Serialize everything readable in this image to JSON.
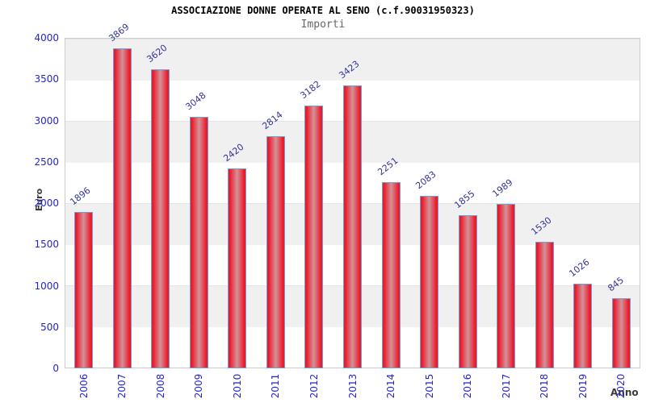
{
  "chart_data": {
    "type": "bar",
    "title": "ASSOCIAZIONE DONNE OPERATE AL SENO (c.f.90031950323)",
    "subtitle": "Importi",
    "xlabel": "Anno",
    "ylabel": "Euro",
    "categories": [
      "2006",
      "2007",
      "2008",
      "2009",
      "2010",
      "2011",
      "2012",
      "2013",
      "2014",
      "2015",
      "2016",
      "2017",
      "2018",
      "2019",
      "2020"
    ],
    "values": [
      1896,
      3869,
      3620,
      3048,
      2420,
      2814,
      3182,
      3423,
      2251,
      2083,
      1855,
      1989,
      1530,
      1026,
      845
    ],
    "ylim": [
      0,
      4000
    ],
    "ytick_step": 500,
    "yticks": [
      0,
      500,
      1000,
      1500,
      2000,
      2500,
      3000,
      3500,
      4000
    ],
    "legend": null,
    "grid": "alternating horizontal bands every 500 units, faint gridline at each band boundary",
    "value_label_rotation_deg": -38,
    "colors": {
      "title": "#000000",
      "subtitle": "#666666",
      "tick_label_blue": "#2525cc",
      "value_label_navy": "#333399",
      "axis_label_gray": "#3a3a3a",
      "bar_edge_red": "#ea1c2b",
      "bar_center_pink": "#d4929a",
      "bar_border_blue": "#6f9fd6",
      "band_gray": "#f0f0f0",
      "band_white": "#ffffff",
      "plot_border": "#cccccc",
      "background": "#ffffff"
    }
  }
}
